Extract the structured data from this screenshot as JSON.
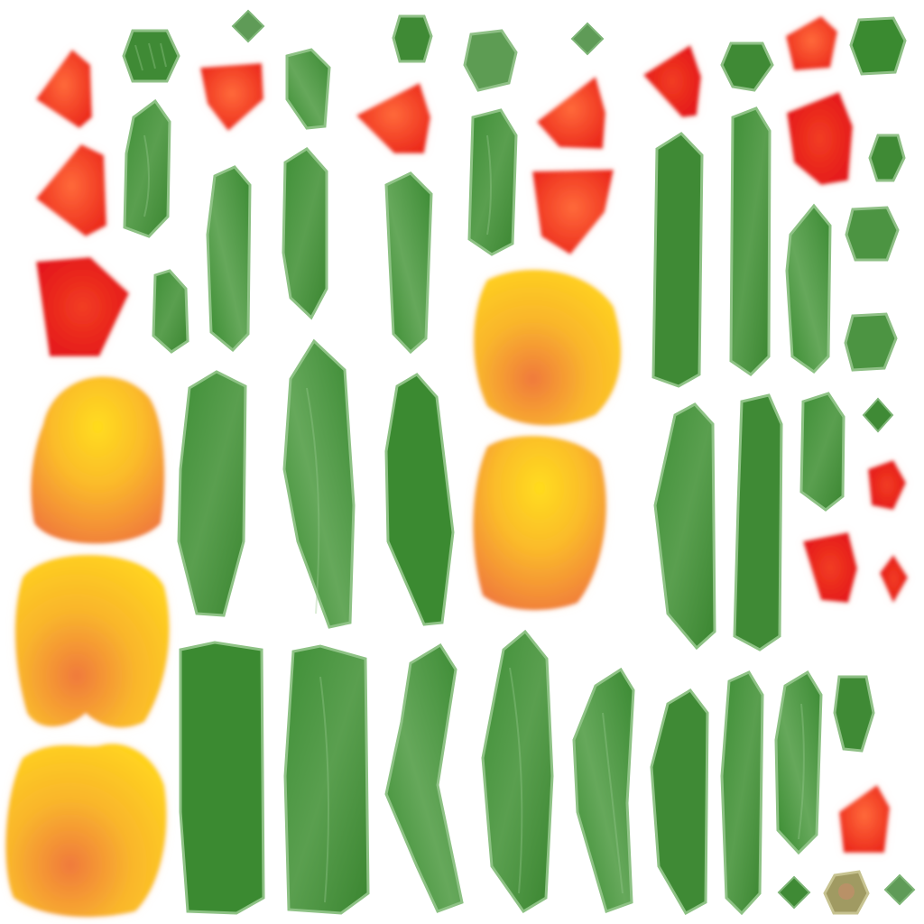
{
  "atlas": {
    "background": "#ffffff",
    "palette": {
      "leaf": "#3a8a32",
      "leaf_light": "#6fae63",
      "red_petal": "#f0492c",
      "red_petal_deep": "#e11e1a",
      "petal_yellow": "#ffd21f",
      "petal_orange": "#f07a3c"
    },
    "pieces": [
      {
        "kind": "leaf",
        "icon": "diamond-leaf-icon"
      },
      {
        "kind": "leaf",
        "icon": "round-leaf-icon"
      },
      {
        "kind": "red-petal",
        "icon": "red-petal-icon"
      },
      {
        "kind": "flower-petal",
        "icon": "tulip-petal-icon"
      },
      {
        "kind": "leaf",
        "icon": "long-leaf-icon"
      }
    ]
  }
}
